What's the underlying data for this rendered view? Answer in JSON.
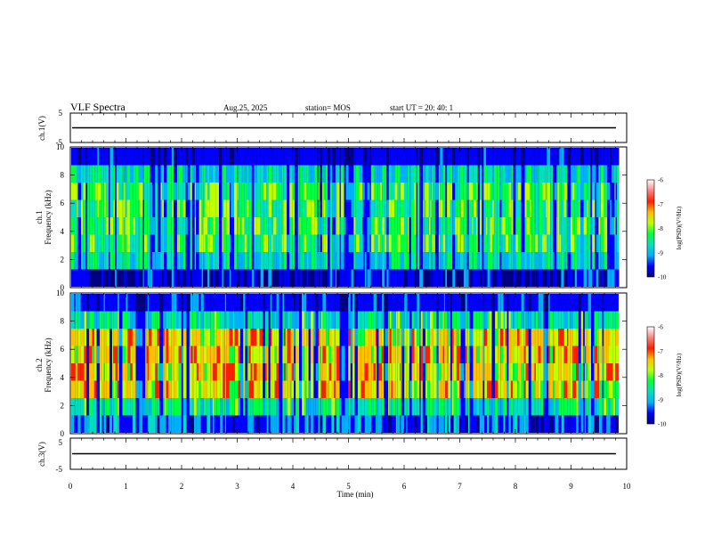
{
  "header": {
    "title": "VLF Spectra",
    "date": "Aug.25, 2025",
    "station": "station= MOS",
    "start": "start  UT  =   20: 40: 1"
  },
  "chart_data": [
    {
      "type": "line",
      "name": "ch1-voltage",
      "ylabel": "ch.1(V)",
      "ylim": [
        -5,
        5
      ],
      "yticks": [
        "5",
        "-5"
      ],
      "x": [
        0,
        10
      ],
      "y": [
        0,
        0
      ],
      "xlim": [
        0,
        10
      ]
    },
    {
      "type": "heatmap",
      "name": "ch1-spectrogram",
      "ylabel_line1": "ch.1",
      "ylabel_line2": "Frequency (kHz)",
      "ylim": [
        0,
        10
      ],
      "yticks": [
        "0",
        "2",
        "4",
        "6",
        "8",
        "10"
      ],
      "xlim": [
        0,
        9.85
      ],
      "colorbar": {
        "label": "log(PSD)(V²/Hz)",
        "ticks": [
          "-6",
          "-7",
          "-8",
          "-9",
          "-10"
        ],
        "range": [
          -10,
          -6
        ]
      }
    },
    {
      "type": "heatmap",
      "name": "ch2-spectrogram",
      "ylabel_line1": "ch.2",
      "ylabel_line2": "Frequency (kHz)",
      "ylim": [
        0,
        10
      ],
      "yticks": [
        "0",
        "2",
        "4",
        "6",
        "8",
        "10"
      ],
      "xlim": [
        0,
        9.85
      ],
      "colorbar": {
        "label": "log(PSD)(V²/Hz)",
        "ticks": [
          "-6",
          "-7",
          "-8",
          "-9",
          "-10"
        ],
        "range": [
          -10,
          -6
        ]
      }
    },
    {
      "type": "line",
      "name": "ch3-voltage",
      "ylabel": "ch.3(V)",
      "ylim": [
        -5,
        5
      ],
      "yticks": [
        "5",
        "-5"
      ],
      "x": [
        0,
        10
      ],
      "y": [
        0,
        0
      ],
      "xlim": [
        0,
        10
      ],
      "xlabel": "Time (min)",
      "xticks": [
        "0",
        "1",
        "2",
        "3",
        "4",
        "5",
        "6",
        "7",
        "8",
        "9",
        "10"
      ]
    }
  ],
  "colors": {
    "colormap": [
      "#000080",
      "#0000ff",
      "#00b0ff",
      "#00e0c0",
      "#00ff40",
      "#c0ff00",
      "#ffc000",
      "#ff2000",
      "#ff8080",
      "#ffffff"
    ]
  }
}
